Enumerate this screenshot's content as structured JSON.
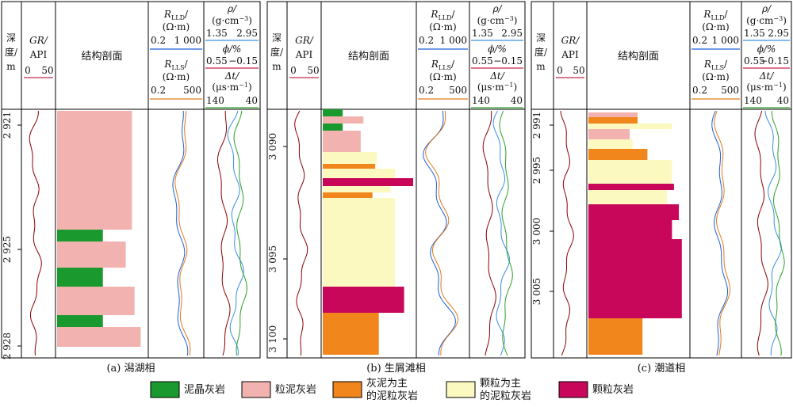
{
  "headers": {
    "depth": [
      "深",
      "度/",
      "m"
    ],
    "gr": "GR/",
    "api": "API",
    "gr_scale": [
      "0",
      "50"
    ],
    "section": "结构剖面",
    "rlld": [
      "R",
      "LLD",
      "/",
      "(Ω·m)"
    ],
    "rlld_scale_a": [
      "0.2",
      "1 000"
    ],
    "rlld_scale_c": [
      "0.2",
      "1 000"
    ],
    "rlls": [
      "R",
      "LLS",
      "/",
      "(Ω·m)"
    ],
    "rlls_scale": [
      "0.2",
      "500"
    ],
    "rho": [
      "ρ/",
      "(g·cm",
      "−3",
      ")"
    ],
    "rho_scale": [
      "1.35",
      "2.95"
    ],
    "phi": "ϕ/%",
    "phi_scale": [
      "0.55",
      "−0.15"
    ],
    "dt": [
      "Δt/",
      "(μs·m",
      "−1",
      ")"
    ],
    "dt_scale": [
      "140",
      "40"
    ]
  },
  "panels": [
    {
      "caption": "(a) 潟湖相",
      "depth_ticks": [
        "2 921",
        "2 925",
        "2 928"
      ]
    },
    {
      "caption": "(b) 生屑滩相",
      "depth_ticks": [
        "3 090",
        "3 095",
        "3 100"
      ]
    },
    {
      "caption": "(c) 潮道相",
      "depth_ticks": [
        "2 991",
        "2 995",
        "3 000",
        "3 005"
      ]
    }
  ],
  "legend": [
    {
      "label": "泥晶灰岩",
      "color": "#1a9a2e"
    },
    {
      "label": "粒泥灰岩",
      "color": "#f2b3b0"
    },
    {
      "label": "灰泥为主\n的泥粒灰岩",
      "color": "#f0861c"
    },
    {
      "label": "颗粒为主\n的泥粒灰岩",
      "color": "#fbf8c0"
    },
    {
      "label": "颗粒灰岩",
      "color": "#c8075a"
    }
  ],
  "colors": {
    "gr": "#8b0000",
    "rlld": "#1f5fd6",
    "rlls": "#e07a1a",
    "rho": "#8b0000",
    "phi": "#3a8fe0",
    "dt": "#2aa02a",
    "header_line_red": "#c8284a"
  }
}
